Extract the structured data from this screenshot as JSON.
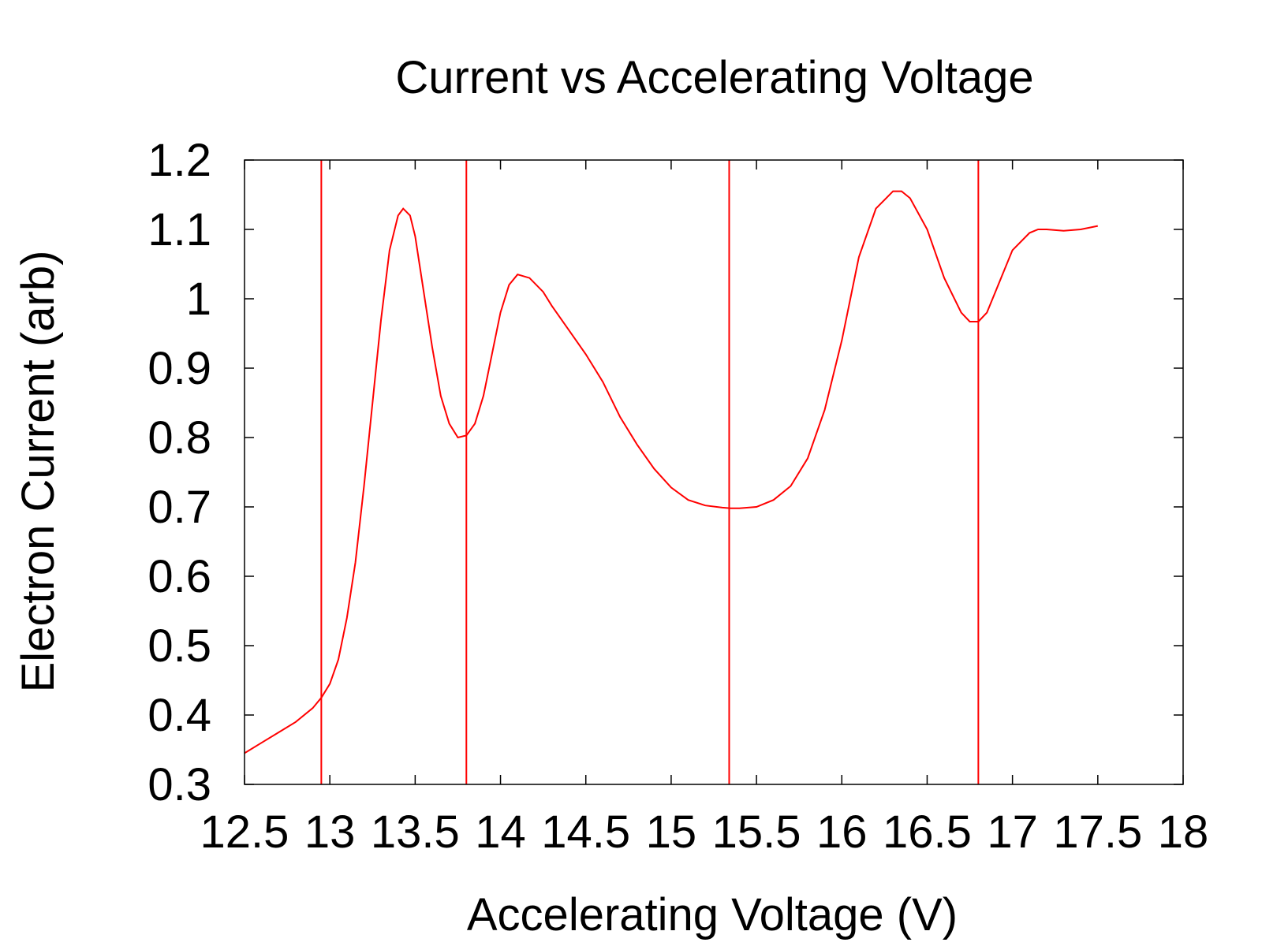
{
  "chart_data": {
    "type": "line",
    "title": "Current vs Accelerating Voltage",
    "xlabel": "Accelerating Voltage (V)",
    "ylabel": "Electron Current (arb)",
    "xlim": [
      12.5,
      18
    ],
    "ylim": [
      0.3,
      1.2
    ],
    "x_ticks": [
      12.5,
      13,
      13.5,
      14,
      14.5,
      15,
      15.5,
      16,
      16.5,
      17,
      17.5,
      18
    ],
    "x_tick_labels": [
      "12.5",
      "13",
      "13.5",
      "14",
      "14.5",
      "15",
      "15.5",
      "16",
      "16.5",
      "17",
      "17.5",
      "18"
    ],
    "y_ticks": [
      0.3,
      0.4,
      0.5,
      0.6,
      0.7,
      0.8,
      0.9,
      1.0,
      1.1,
      1.2
    ],
    "y_tick_labels": [
      "0.3",
      "0.4",
      "0.5",
      "0.6",
      "0.7",
      "0.8",
      "0.9",
      "1",
      "1.1",
      "1.2"
    ],
    "grid": false,
    "legend": "none",
    "color": "#ff0000",
    "vertical_lines_x": [
      12.95,
      13.8,
      15.34,
      16.8
    ],
    "series": [
      {
        "x": [
          12.5,
          12.6,
          12.7,
          12.8,
          12.9,
          12.95,
          13.0,
          13.05,
          13.1,
          13.15,
          13.2,
          13.25,
          13.3,
          13.35,
          13.4,
          13.43,
          13.47,
          13.5,
          13.55,
          13.6,
          13.65,
          13.7,
          13.75,
          13.8,
          13.85,
          13.9,
          13.95,
          14.0,
          14.05,
          14.1,
          14.17,
          14.25,
          14.3,
          14.4,
          14.5,
          14.6,
          14.7,
          14.8,
          14.9,
          15.0,
          15.1,
          15.2,
          15.3,
          15.35,
          15.4,
          15.5,
          15.6,
          15.7,
          15.8,
          15.9,
          16.0,
          16.05,
          16.1,
          16.2,
          16.3,
          16.35,
          16.4,
          16.5,
          16.6,
          16.7,
          16.75,
          16.8,
          16.85,
          16.9,
          17.0,
          17.1,
          17.15,
          17.2,
          17.3,
          17.4,
          17.5
        ],
        "y": [
          0.345,
          0.36,
          0.375,
          0.39,
          0.41,
          0.425,
          0.445,
          0.48,
          0.54,
          0.62,
          0.73,
          0.85,
          0.97,
          1.07,
          1.12,
          1.13,
          1.12,
          1.09,
          1.01,
          0.93,
          0.86,
          0.82,
          0.8,
          0.803,
          0.82,
          0.86,
          0.92,
          0.98,
          1.02,
          1.035,
          1.03,
          1.01,
          0.99,
          0.955,
          0.92,
          0.88,
          0.83,
          0.79,
          0.755,
          0.728,
          0.71,
          0.702,
          0.699,
          0.698,
          0.698,
          0.7,
          0.71,
          0.73,
          0.77,
          0.84,
          0.94,
          1.0,
          1.06,
          1.13,
          1.155,
          1.155,
          1.145,
          1.1,
          1.03,
          0.98,
          0.967,
          0.967,
          0.98,
          1.01,
          1.07,
          1.095,
          1.1,
          1.1,
          1.098,
          1.1,
          1.105
        ]
      }
    ]
  }
}
